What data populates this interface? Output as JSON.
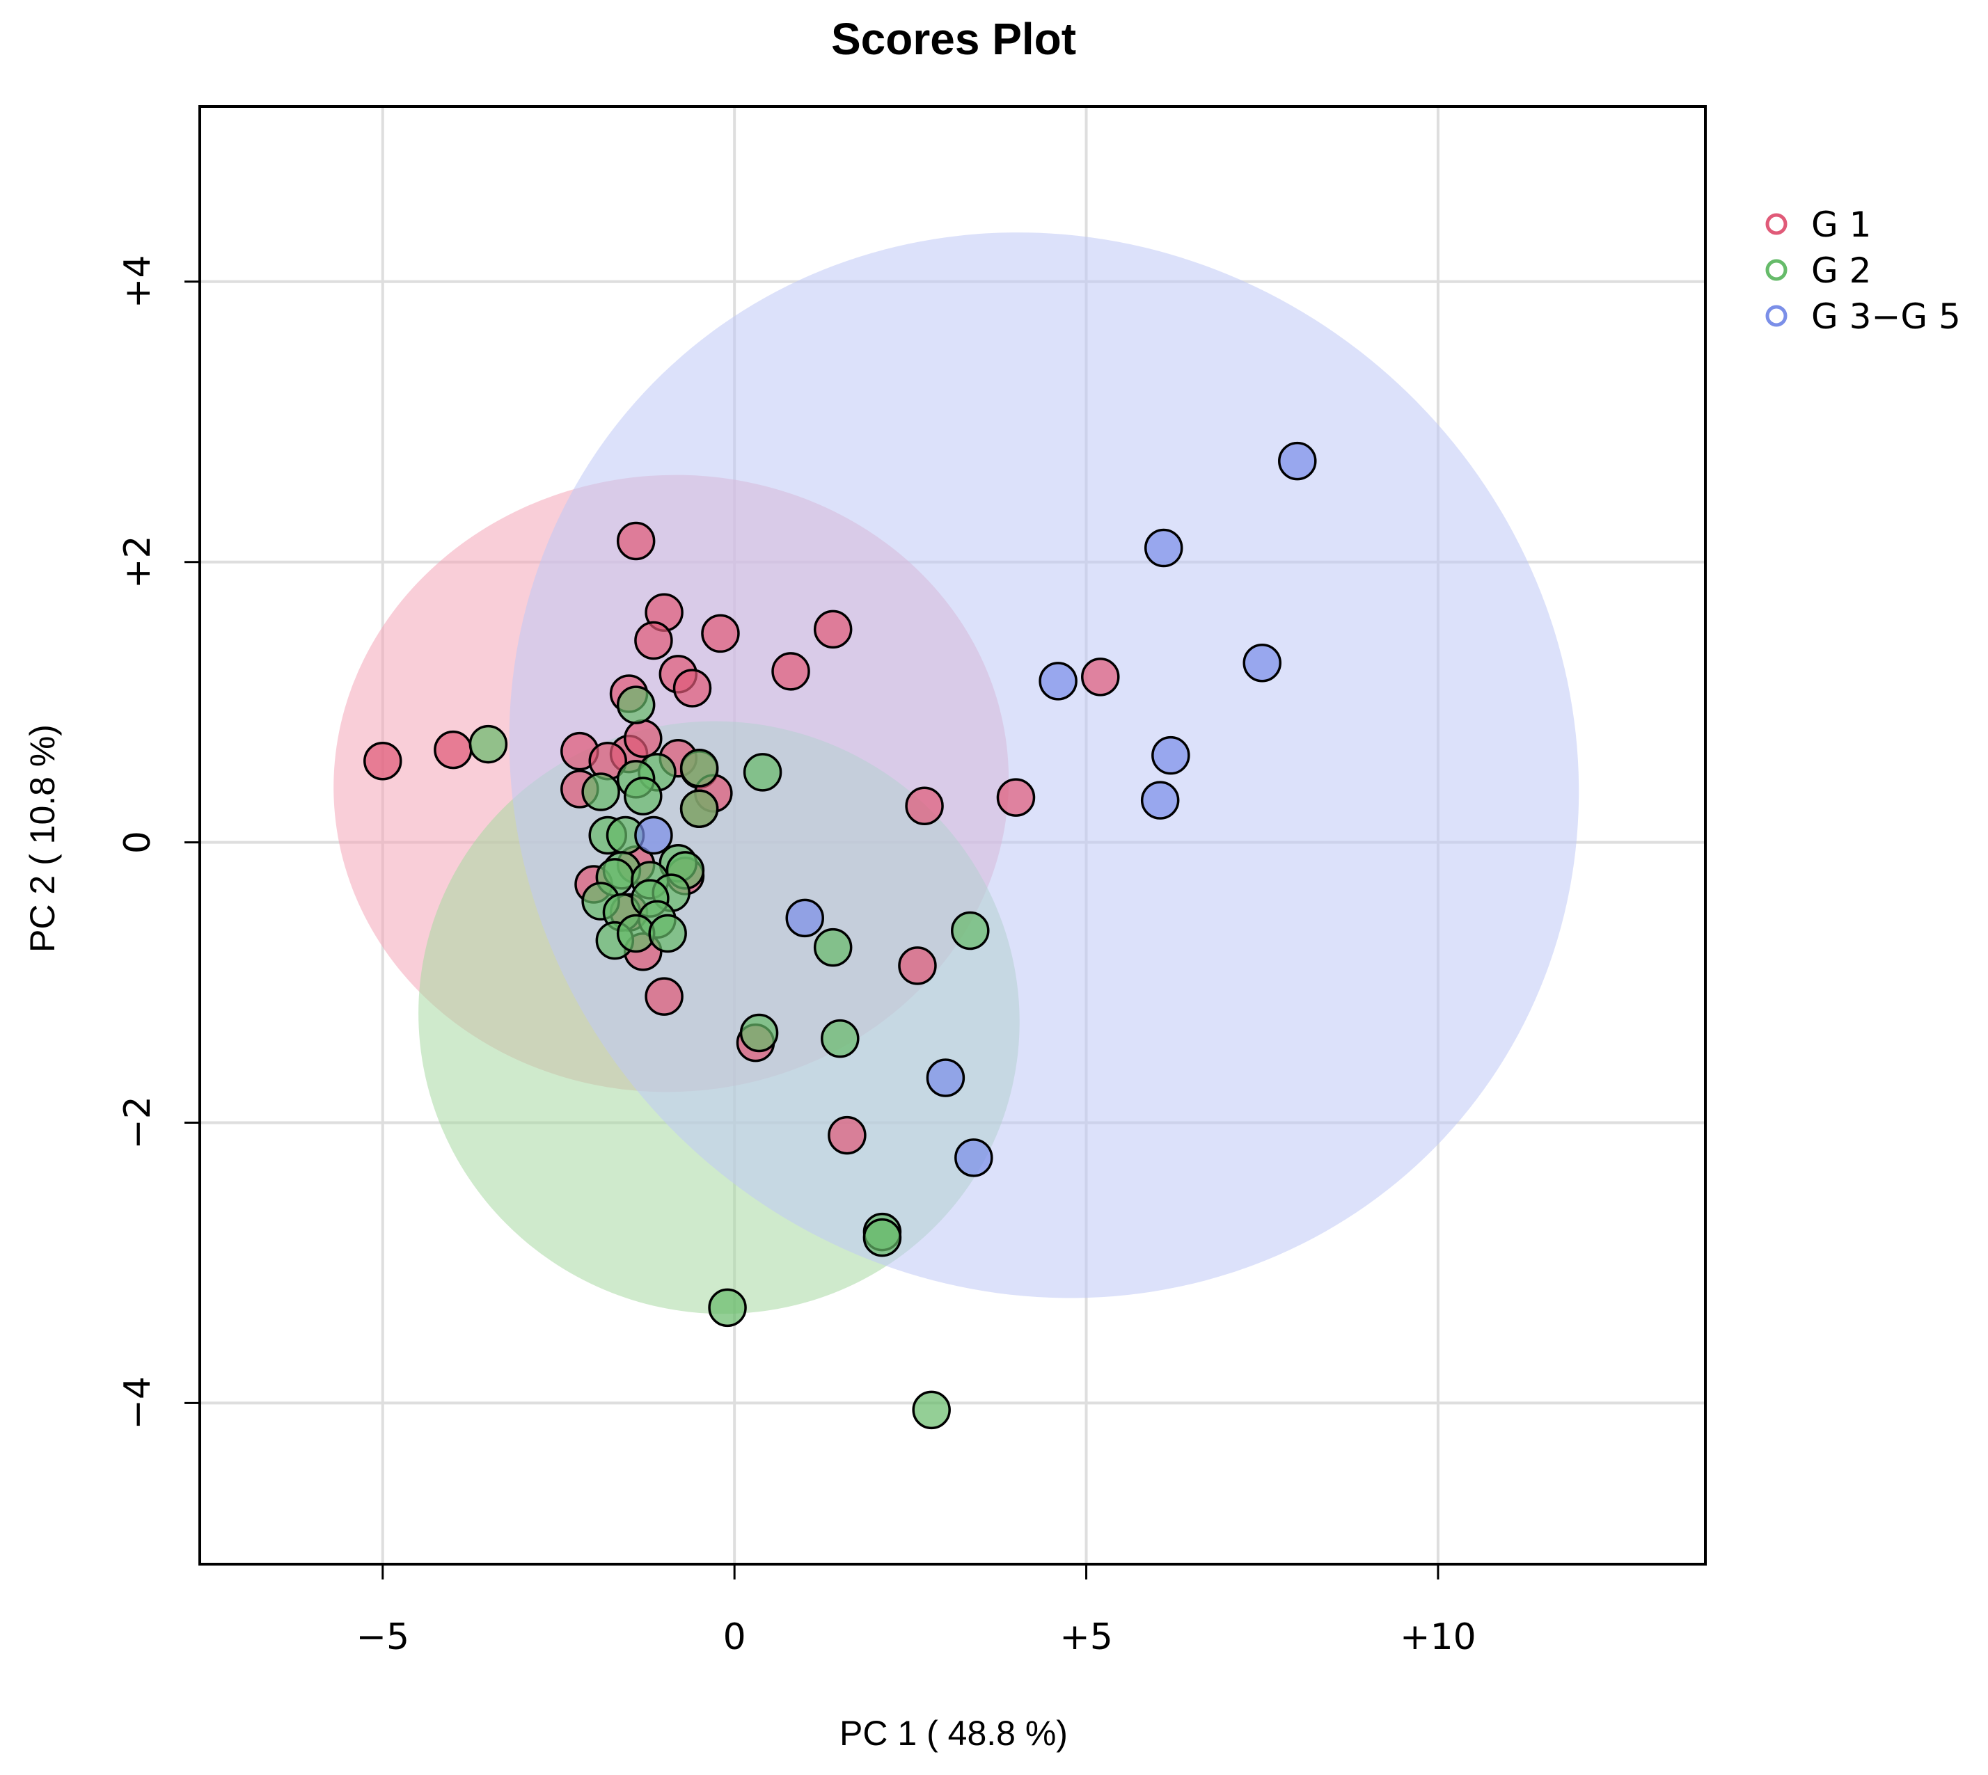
{
  "chart_data": {
    "type": "scatter",
    "title": "Scores Plot",
    "xlabel": "PC 1 ( 48.8 %)",
    "ylabel": "PC 2 ( 10.8 %)",
    "xlim": [
      -7.6,
      13.8
    ],
    "ylim": [
      -5.15,
      5.25
    ],
    "x_ticks": [
      {
        "value": -5,
        "label": "−5"
      },
      {
        "value": 0,
        "label": "0"
      },
      {
        "value": 5,
        "label": "+5"
      },
      {
        "value": 10,
        "label": "+10"
      }
    ],
    "y_ticks": [
      {
        "value": -4,
        "label": "−4"
      },
      {
        "value": -2,
        "label": "−2"
      },
      {
        "value": 0,
        "label": "0"
      },
      {
        "value": 2,
        "label": "+2"
      },
      {
        "value": 4,
        "label": "+4"
      }
    ],
    "grid": true,
    "legend_position": "right",
    "series": [
      {
        "name": "G 1",
        "color": "#e05a78",
        "ellipse": {
          "cx": -0.9,
          "cy": 0.42,
          "rx": 4.8,
          "ry": 2.2,
          "angle": -4,
          "color": "#f4a6b8"
        },
        "points": [
          [
            -5.0,
            0.58
          ],
          [
            -4.0,
            0.66
          ],
          [
            -1.4,
            2.15
          ],
          [
            -1.0,
            1.64
          ],
          [
            -1.15,
            1.44
          ],
          [
            -0.2,
            1.49
          ],
          [
            1.4,
            1.52
          ],
          [
            0.8,
            1.22
          ],
          [
            -0.8,
            1.2
          ],
          [
            -0.6,
            1.1
          ],
          [
            -1.5,
            1.06
          ],
          [
            -2.2,
            0.65
          ],
          [
            -1.5,
            0.63
          ],
          [
            -1.3,
            0.74
          ],
          [
            -1.8,
            0.58
          ],
          [
            -0.8,
            0.6
          ],
          [
            -0.5,
            0.52
          ],
          [
            -0.3,
            0.35
          ],
          [
            -2.2,
            0.38
          ],
          [
            -0.5,
            0.24
          ],
          [
            2.7,
            0.26
          ],
          [
            4.0,
            0.32
          ],
          [
            5.2,
            1.18
          ],
          [
            -2.0,
            -0.3
          ],
          [
            -1.4,
            -0.16
          ],
          [
            -0.7,
            -0.24
          ],
          [
            -1.5,
            -0.5
          ],
          [
            -1.3,
            -0.78
          ],
          [
            2.6,
            -0.88
          ],
          [
            -1.0,
            -1.1
          ],
          [
            0.3,
            -1.43
          ],
          [
            1.6,
            -2.09
          ]
        ]
      },
      {
        "name": "G 2",
        "color": "#66bb6a",
        "ellipse": {
          "cx": -0.22,
          "cy": -1.25,
          "rx": 4.2,
          "ry": 2.15,
          "angle": -67,
          "color": "#a8d8a2"
        },
        "points": [
          [
            -3.5,
            0.7
          ],
          [
            -1.4,
            0.98
          ],
          [
            -0.5,
            0.53
          ],
          [
            0.4,
            0.5
          ],
          [
            -1.1,
            0.5
          ],
          [
            -1.4,
            0.45
          ],
          [
            -1.9,
            0.36
          ],
          [
            -1.3,
            0.33
          ],
          [
            -0.5,
            0.24
          ],
          [
            -1.8,
            0.05
          ],
          [
            -1.55,
            0.05
          ],
          [
            -1.6,
            -0.2
          ],
          [
            -1.7,
            -0.25
          ],
          [
            -0.8,
            -0.15
          ],
          [
            -0.7,
            -0.2
          ],
          [
            -1.2,
            -0.27
          ],
          [
            -0.9,
            -0.36
          ],
          [
            -1.9,
            -0.42
          ],
          [
            -1.6,
            -0.5
          ],
          [
            -1.2,
            -0.4
          ],
          [
            -1.1,
            -0.55
          ],
          [
            -1.7,
            -0.7
          ],
          [
            -1.4,
            -0.65
          ],
          [
            -0.95,
            -0.65
          ],
          [
            3.35,
            -0.63
          ],
          [
            1.4,
            -0.75
          ],
          [
            0.35,
            -1.36
          ],
          [
            1.5,
            -1.4
          ],
          [
            2.1,
            -2.78
          ],
          [
            2.1,
            -2.82
          ],
          [
            -0.1,
            -3.32
          ],
          [
            2.8,
            -4.05
          ]
        ]
      },
      {
        "name": "G 3−G 5",
        "color": "#7b8fe8",
        "ellipse": {
          "cx": 4.4,
          "cy": 0.55,
          "rx": 7.4,
          "ry": 3.9,
          "angle": -47,
          "color": "#bfc8f5"
        },
        "points": [
          [
            8.0,
            2.72
          ],
          [
            6.1,
            2.1
          ],
          [
            4.6,
            1.15
          ],
          [
            7.5,
            1.28
          ],
          [
            6.2,
            0.62
          ],
          [
            6.05,
            0.3
          ],
          [
            -1.15,
            0.05
          ],
          [
            1.0,
            -0.54
          ],
          [
            3.0,
            -1.68
          ],
          [
            3.4,
            -2.25
          ]
        ]
      }
    ]
  }
}
